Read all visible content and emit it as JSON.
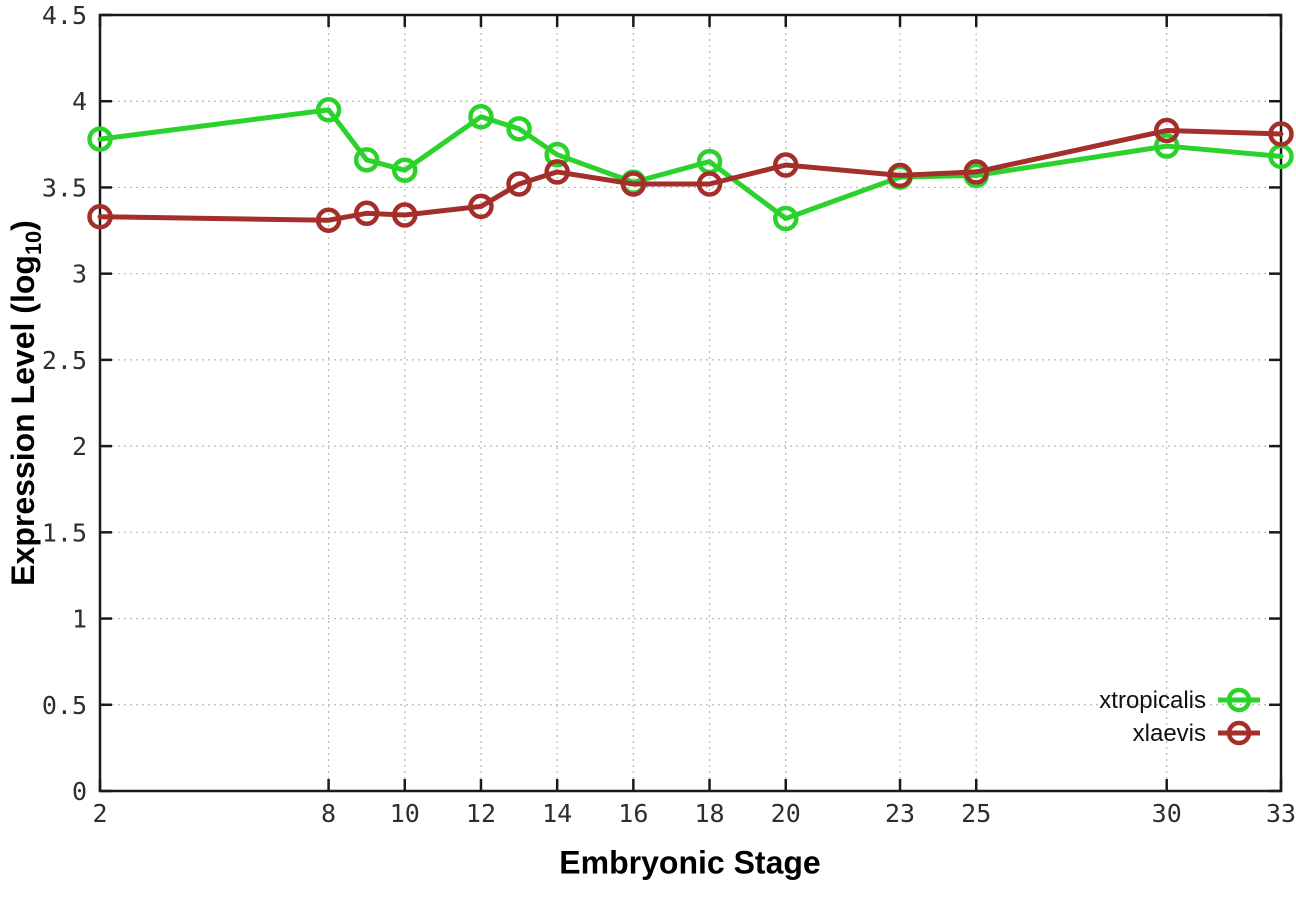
{
  "figure": {
    "background": "#ffffff",
    "border_color": "#1a1a1a",
    "grid_color": "#b9b9b9",
    "tick_text_color": "#2e2e2e"
  },
  "chart_data": {
    "type": "line",
    "title": "",
    "xlabel": "Embryonic Stage",
    "ylabel": {
      "text": "Expression Level (log",
      "subscript": "10",
      "suffix": ")"
    },
    "xlim": [
      2,
      33
    ],
    "ylim": [
      0,
      4.5
    ],
    "grid": true,
    "legend_position": "bottom-right",
    "x": [
      2,
      8,
      9,
      10,
      12,
      13,
      14,
      16,
      18,
      20,
      23,
      25,
      30,
      33
    ],
    "x_ticks": [
      2,
      8,
      10,
      12,
      14,
      16,
      18,
      20,
      23,
      25,
      30,
      33
    ],
    "y_ticks": [
      0,
      0.5,
      1,
      1.5,
      2,
      2.5,
      3,
      3.5,
      4,
      4.5
    ],
    "y_tick_labels": [
      "0",
      "0.5",
      "1",
      "1.5",
      "2",
      "2.5",
      "3",
      "3.5",
      "4",
      "4.5"
    ],
    "series": [
      {
        "name": "xtropicalis",
        "color": "#2bd22b",
        "marker": "open-circle",
        "values": [
          3.78,
          3.95,
          3.66,
          3.6,
          3.91,
          3.84,
          3.69,
          3.53,
          3.65,
          3.32,
          3.56,
          3.57,
          3.74,
          3.68
        ]
      },
      {
        "name": "xlaevis",
        "color": "#a42e2a",
        "marker": "open-circle",
        "values": [
          3.33,
          3.31,
          3.35,
          3.34,
          3.39,
          3.52,
          3.59,
          3.52,
          3.52,
          3.63,
          3.57,
          3.59,
          3.83,
          3.81
        ]
      }
    ]
  }
}
